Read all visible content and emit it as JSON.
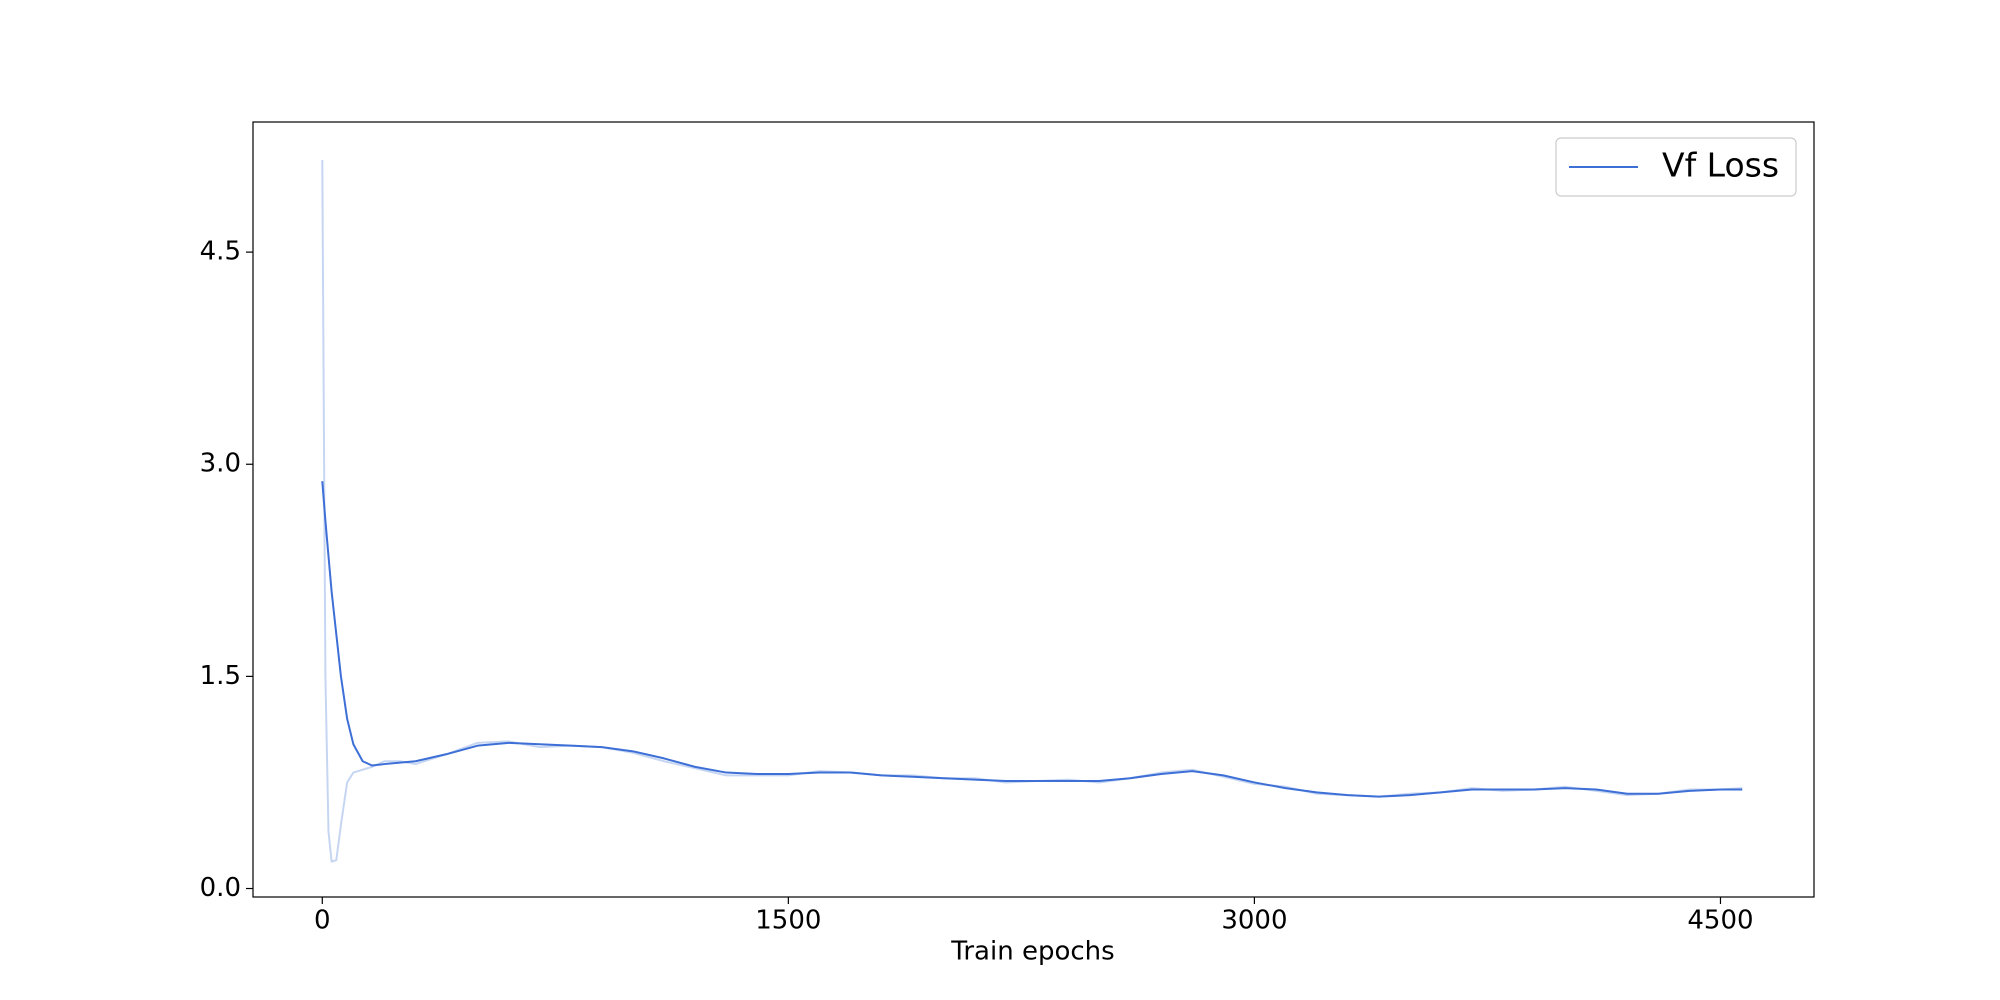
{
  "chart_data": {
    "type": "line",
    "x_label": "Train epochs",
    "x": [
      0,
      10,
      20,
      30,
      45,
      60,
      80,
      100,
      130,
      160,
      200,
      250,
      300,
      400,
      500,
      600,
      700,
      800,
      900,
      1000,
      1100,
      1200,
      1300,
      1400,
      1500,
      1600,
      1700,
      1800,
      1900,
      2000,
      2100,
      2200,
      2300,
      2400,
      2500,
      2600,
      2700,
      2800,
      2900,
      3000,
      3100,
      3200,
      3300,
      3400,
      3500,
      3600,
      3700,
      3800,
      3900,
      4000,
      4100,
      4200,
      4300,
      4400,
      4500,
      4570
    ],
    "series": [
      {
        "color": "#c6d6f2",
        "values": [
          5.15,
          1.5,
          0.4,
          0.19,
          0.2,
          0.45,
          0.75,
          0.82,
          0.84,
          0.86,
          0.9,
          0.9,
          0.88,
          0.95,
          1.03,
          1.04,
          1.0,
          1.01,
          1.0,
          0.96,
          0.9,
          0.85,
          0.8,
          0.8,
          0.8,
          0.83,
          0.82,
          0.8,
          0.8,
          0.78,
          0.78,
          0.75,
          0.76,
          0.77,
          0.75,
          0.78,
          0.82,
          0.84,
          0.79,
          0.74,
          0.72,
          0.67,
          0.66,
          0.65,
          0.67,
          0.68,
          0.71,
          0.69,
          0.7,
          0.72,
          0.69,
          0.66,
          0.67,
          0.7,
          0.7,
          0.71
        ]
      },
      {
        "name": "Vf Loss",
        "color": "#3d6fd6",
        "values": [
          2.88,
          2.6,
          2.35,
          2.1,
          1.8,
          1.5,
          1.2,
          1.02,
          0.9,
          0.87,
          0.88,
          0.89,
          0.9,
          0.95,
          1.01,
          1.03,
          1.02,
          1.01,
          1.0,
          0.97,
          0.92,
          0.86,
          0.82,
          0.81,
          0.81,
          0.82,
          0.82,
          0.8,
          0.79,
          0.78,
          0.77,
          0.76,
          0.76,
          0.76,
          0.76,
          0.78,
          0.81,
          0.83,
          0.8,
          0.75,
          0.71,
          0.68,
          0.66,
          0.65,
          0.66,
          0.68,
          0.7,
          0.7,
          0.7,
          0.71,
          0.7,
          0.67,
          0.67,
          0.69,
          0.7,
          0.7
        ]
      }
    ],
    "xlim": [
      -223,
      4801
    ],
    "xticks": [
      0,
      1500,
      3000,
      4500
    ],
    "ylim": [
      -0.06,
      5.42
    ],
    "yticks": [
      {
        "value": 0,
        "label": "0.0"
      },
      1.5,
      {
        "value": 3,
        "label": "3.0"
      },
      4.5
    ],
    "grid": false,
    "legend": "upper right"
  }
}
